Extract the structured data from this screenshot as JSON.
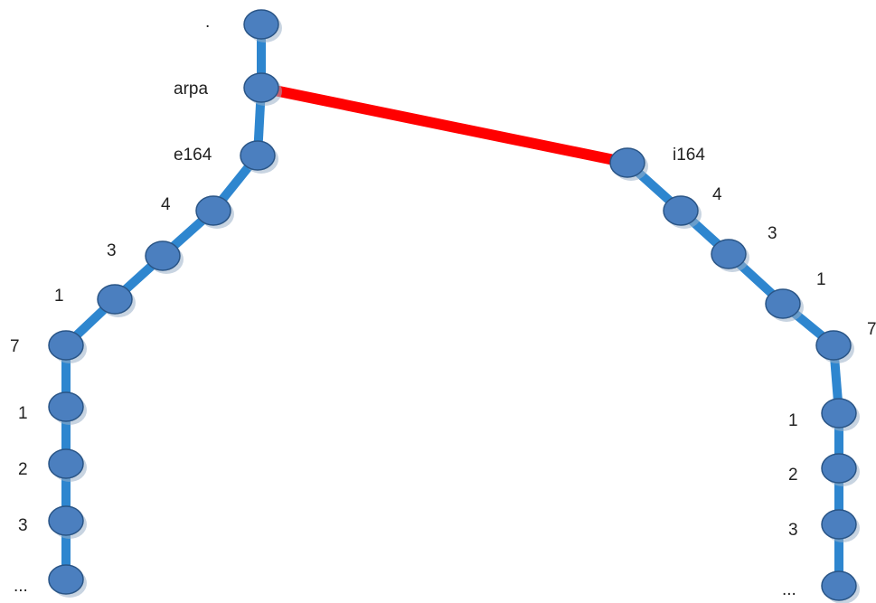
{
  "colors": {
    "edge": "#2e86cf",
    "highlight_edge": "#ff0000",
    "node_fill": "#4b7fbf",
    "node_stroke": "#2a5586",
    "node_shadow": "#9ab0c8",
    "text": "#222222"
  },
  "nodes": {
    "root": {
      "label": "."
    },
    "arpa": {
      "label": "arpa"
    },
    "e164": {
      "label": "e164"
    },
    "i164": {
      "label": "i164"
    },
    "l_4": {
      "label": "4"
    },
    "l_3": {
      "label": "3"
    },
    "l_1": {
      "label": "1"
    },
    "l_7": {
      "label": "7"
    },
    "l_1b": {
      "label": "1"
    },
    "l_2": {
      "label": "2"
    },
    "l_3b": {
      "label": "3"
    },
    "l_dots": {
      "label": "..."
    },
    "r_4": {
      "label": "4"
    },
    "r_3": {
      "label": "3"
    },
    "r_1": {
      "label": "1"
    },
    "r_7": {
      "label": "7"
    },
    "r_1b": {
      "label": "1"
    },
    "r_2": {
      "label": "2"
    },
    "r_3b": {
      "label": "3"
    },
    "r_dots": {
      "label": "..."
    }
  },
  "edges": [
    {
      "from": "root",
      "to": "arpa"
    },
    {
      "from": "arpa",
      "to": "e164"
    },
    {
      "from": "arpa",
      "to": "i164",
      "highlight": true
    },
    {
      "from": "e164",
      "to": "l_4"
    },
    {
      "from": "l_4",
      "to": "l_3"
    },
    {
      "from": "l_3",
      "to": "l_1"
    },
    {
      "from": "l_1",
      "to": "l_7"
    },
    {
      "from": "l_7",
      "to": "l_1b"
    },
    {
      "from": "l_1b",
      "to": "l_2"
    },
    {
      "from": "l_2",
      "to": "l_3b"
    },
    {
      "from": "l_3b",
      "to": "l_dots"
    },
    {
      "from": "i164",
      "to": "r_4"
    },
    {
      "from": "r_4",
      "to": "r_3"
    },
    {
      "from": "r_3",
      "to": "r_1"
    },
    {
      "from": "r_1",
      "to": "r_7"
    },
    {
      "from": "r_7",
      "to": "r_1b"
    },
    {
      "from": "r_1b",
      "to": "r_2"
    },
    {
      "from": "r_2",
      "to": "r_3b"
    },
    {
      "from": "r_3b",
      "to": "r_dots"
    }
  ]
}
